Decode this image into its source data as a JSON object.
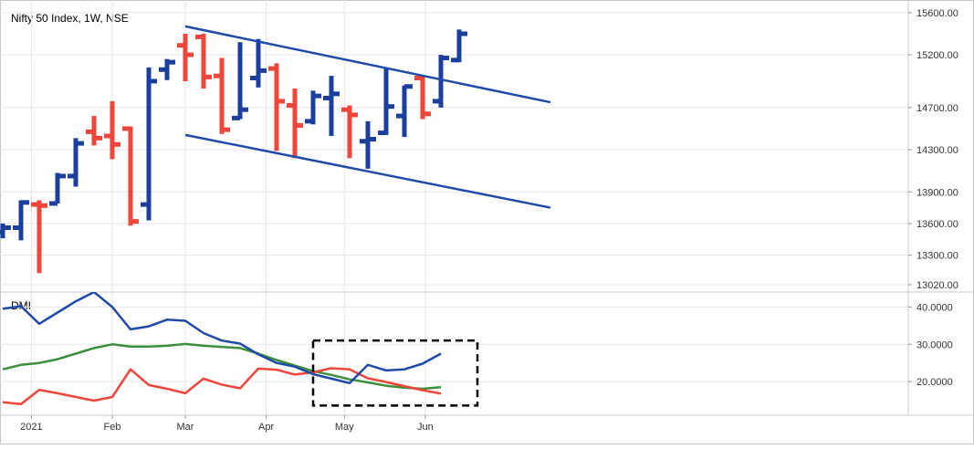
{
  "header": {
    "title": "Nifty 50 Index, 1W, NSE"
  },
  "indicator": {
    "title": "DMI"
  },
  "colors": {
    "up": "#1b3f9c",
    "down": "#f0453a",
    "channel": "#1f4aa8",
    "plus_di": "#1f4aa8",
    "minus_di": "#f0453a",
    "adx": "#3a8f3a",
    "grid": "#e6e6e6",
    "axis_text": "#333333",
    "highlight_box": "#000000"
  },
  "chart_data": [
    {
      "type": "ohlc",
      "title": "Nifty 50 Index, 1W, NSE",
      "x_tick_labels": [
        "2021",
        "Feb",
        "Mar",
        "Apr",
        "May",
        "Jun"
      ],
      "y_tick_labels": [
        "15600.00",
        "15200.00",
        "14700.00",
        "14300.00",
        "13900.00",
        "13600.00",
        "13300.00",
        "13020.00"
      ],
      "ylim": [
        12950,
        15720
      ],
      "grid": true,
      "bars": [
        {
          "week": "2020-12-21",
          "open": 13520,
          "high": 13600,
          "low": 13460,
          "close": 13560
        },
        {
          "week": "2020-12-28",
          "open": 13560,
          "high": 13820,
          "low": 13440,
          "close": 13800
        },
        {
          "week": "2021-01-04",
          "open": 13780,
          "high": 13820,
          "low": 13130,
          "close": 13770
        },
        {
          "week": "2021-01-11",
          "open": 13790,
          "high": 14080,
          "low": 13790,
          "close": 14050
        },
        {
          "week": "2021-01-18",
          "open": 14050,
          "high": 14410,
          "low": 13950,
          "close": 14360
        },
        {
          "week": "2021-01-25",
          "open": 14470,
          "high": 14620,
          "low": 14340,
          "close": 14410
        },
        {
          "week": "2021-02-01",
          "open": 14430,
          "high": 14760,
          "low": 14210,
          "close": 14350
        },
        {
          "week": "2021-02-08",
          "open": 14500,
          "high": 14520,
          "low": 13580,
          "close": 13620
        },
        {
          "week": "2021-02-15",
          "open": 13780,
          "high": 15080,
          "low": 13630,
          "close": 14950
        },
        {
          "week": "2021-02-22",
          "open": 15060,
          "high": 15160,
          "low": 14960,
          "close": 15130
        },
        {
          "week": "2021-03-01",
          "open": 15290,
          "high": 15400,
          "low": 14950,
          "close": 15200
        },
        {
          "week": "2021-03-08",
          "open": 15370,
          "high": 15400,
          "low": 14880,
          "close": 14990
        },
        {
          "week": "2021-03-15",
          "open": 15000,
          "high": 15170,
          "low": 14450,
          "close": 14490
        },
        {
          "week": "2021-03-22",
          "open": 14600,
          "high": 15320,
          "low": 14590,
          "close": 14680
        },
        {
          "week": "2021-03-29",
          "open": 14980,
          "high": 15350,
          "low": 14890,
          "close": 15050
        },
        {
          "week": "2021-04-05",
          "open": 15070,
          "high": 15120,
          "low": 14290,
          "close": 14760
        },
        {
          "week": "2021-04-12",
          "open": 14720,
          "high": 14880,
          "low": 14220,
          "close": 14530
        },
        {
          "week": "2021-04-19",
          "open": 14570,
          "high": 14860,
          "low": 14540,
          "close": 14810
        },
        {
          "week": "2021-04-26",
          "open": 14790,
          "high": 15000,
          "low": 14430,
          "close": 14830
        },
        {
          "week": "2021-05-03",
          "open": 14680,
          "high": 14720,
          "low": 14220,
          "close": 14630
        },
        {
          "week": "2021-05-10",
          "open": 14380,
          "high": 14570,
          "low": 14120,
          "close": 14400
        },
        {
          "week": "2021-05-17",
          "open": 14460,
          "high": 15070,
          "low": 14440,
          "close": 14710
        },
        {
          "week": "2021-05-24",
          "open": 14620,
          "high": 14910,
          "low": 14420,
          "close": 14900
        },
        {
          "week": "2021-05-31",
          "open": 14980,
          "high": 15000,
          "low": 14590,
          "close": 14640
        },
        {
          "week": "2021-06-07",
          "open": 14760,
          "high": 15200,
          "low": 14700,
          "close": 15170
        },
        {
          "week": "2021-06-14",
          "open": 15150,
          "high": 15440,
          "low": 15130,
          "close": 15400
        }
      ],
      "channel_lines": [
        {
          "from": {
            "week": "2021-03-01",
            "value": 15470
          },
          "to": {
            "week": "2021-07-19",
            "value": 14750
          }
        },
        {
          "from": {
            "week": "2021-03-01",
            "value": 14440
          },
          "to": {
            "week": "2021-07-19",
            "value": 13750
          }
        }
      ]
    },
    {
      "type": "line",
      "title": "DMI",
      "y_tick_labels": [
        "40.0000",
        "30.0000",
        "20.0000"
      ],
      "ylim": [
        11,
        44
      ],
      "grid": true,
      "series": [
        {
          "color": "#1f4aa8",
          "values": [
            39.5,
            40.2,
            35.5,
            38.5,
            41.5,
            44.0,
            40.0,
            34.0,
            34.8,
            36.6,
            36.3,
            33.0,
            31.0,
            30.2,
            27.3,
            25.0,
            24.0,
            22.0,
            20.8,
            19.6,
            24.5,
            23.0,
            23.3,
            24.8,
            27.5
          ]
        },
        {
          "color": "#3a8f3a",
          "values": [
            23.3,
            24.5,
            25.0,
            26.0,
            27.5,
            29.0,
            30.0,
            29.4,
            29.4,
            29.6,
            30.1,
            29.6,
            29.3,
            29.0,
            27.5,
            25.8,
            24.3,
            22.8,
            21.8,
            20.6,
            19.8,
            18.9,
            18.4,
            18.1,
            18.5
          ]
        },
        {
          "color": "#f0453a",
          "values": [
            14.5,
            14.0,
            17.8,
            16.9,
            15.9,
            14.9,
            15.9,
            23.3,
            19.1,
            18.1,
            16.9,
            20.8,
            19.2,
            18.2,
            23.5,
            23.2,
            21.9,
            22.5,
            23.6,
            23.3,
            20.9,
            19.9,
            18.8,
            17.7,
            16.8
          ]
        }
      ],
      "highlight_box": {
        "from_week": "2021-04-19",
        "to_week": "2021-06-21",
        "ylim": [
          13.6,
          31.0
        ]
      }
    }
  ]
}
